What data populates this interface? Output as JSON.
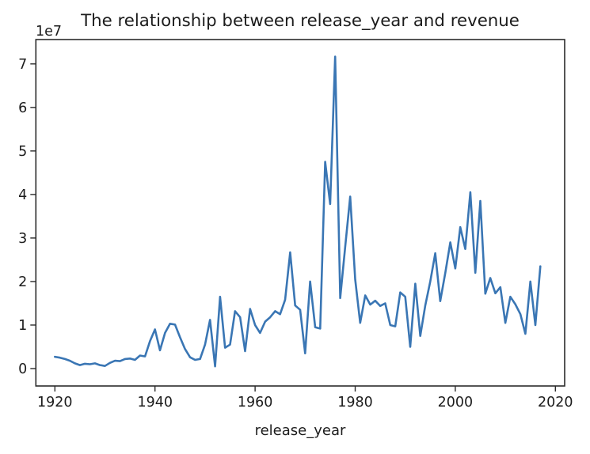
{
  "figure": {
    "title": "The relationship between release_year and revenue",
    "offset_label": "1e7",
    "xlabel": "release_year",
    "background": "#ffffff",
    "line_color": "#3a76b4",
    "axis_color": "#2b2b2b"
  },
  "chart_data": {
    "type": "line",
    "title": "The relationship between release_year and revenue",
    "xlabel": "release_year",
    "ylabel": "",
    "y_offset_multiplier": "1e7",
    "grid": false,
    "legend": "none",
    "xlim": [
      1916.2,
      2021.85
    ],
    "ylim": [
      -0.4,
      7.56
    ],
    "xticks": [
      1920,
      1940,
      1960,
      1980,
      2000,
      2020
    ],
    "yticks": [
      0,
      1,
      2,
      3,
      4,
      5,
      6,
      7
    ],
    "x": [
      1920,
      1921,
      1922,
      1923,
      1924,
      1925,
      1926,
      1927,
      1928,
      1929,
      1930,
      1931,
      1932,
      1933,
      1934,
      1935,
      1936,
      1937,
      1938,
      1939,
      1940,
      1941,
      1942,
      1943,
      1944,
      1945,
      1946,
      1947,
      1948,
      1949,
      1950,
      1951,
      1952,
      1953,
      1954,
      1955,
      1956,
      1957,
      1958,
      1959,
      1960,
      1961,
      1962,
      1963,
      1964,
      1965,
      1966,
      1967,
      1968,
      1969,
      1970,
      1971,
      1972,
      1973,
      1974,
      1975,
      1976,
      1977,
      1978,
      1979,
      1980,
      1981,
      1982,
      1983,
      1984,
      1985,
      1986,
      1987,
      1988,
      1989,
      1990,
      1991,
      1992,
      1993,
      1994,
      1995,
      1996,
      1997,
      1998,
      1999,
      2000,
      2001,
      2002,
      2003,
      2004,
      2005,
      2006,
      2007,
      2008,
      2009,
      2010,
      2011,
      2012,
      2013,
      2014,
      2015,
      2016,
      2017
    ],
    "series": [
      {
        "name": "revenue (units of 1e7)",
        "values": [
          0.27,
          0.25,
          0.22,
          0.18,
          0.12,
          0.08,
          0.11,
          0.1,
          0.12,
          0.08,
          0.06,
          0.13,
          0.18,
          0.17,
          0.22,
          0.23,
          0.2,
          0.3,
          0.28,
          0.63,
          0.9,
          0.42,
          0.82,
          1.03,
          1.01,
          0.72,
          0.45,
          0.26,
          0.2,
          0.22,
          0.55,
          1.12,
          0.05,
          1.65,
          0.48,
          0.55,
          1.32,
          1.18,
          0.4,
          1.37,
          1.0,
          0.82,
          1.08,
          1.18,
          1.32,
          1.25,
          1.58,
          2.67,
          1.45,
          1.35,
          0.35,
          2.0,
          0.95,
          0.92,
          4.75,
          3.78,
          7.17,
          1.62,
          2.8,
          3.95,
          2.05,
          1.05,
          1.68,
          1.47,
          1.56,
          1.44,
          1.5,
          1.0,
          0.97,
          1.75,
          1.65,
          0.5,
          1.95,
          0.75,
          1.45,
          2.0,
          2.65,
          1.55,
          2.2,
          2.9,
          2.3,
          3.25,
          2.75,
          4.05,
          2.2,
          3.85,
          1.72,
          2.08,
          1.73,
          1.87,
          1.05,
          1.65,
          1.48,
          1.25,
          0.8,
          2.0,
          1.0,
          2.35
        ]
      }
    ]
  }
}
